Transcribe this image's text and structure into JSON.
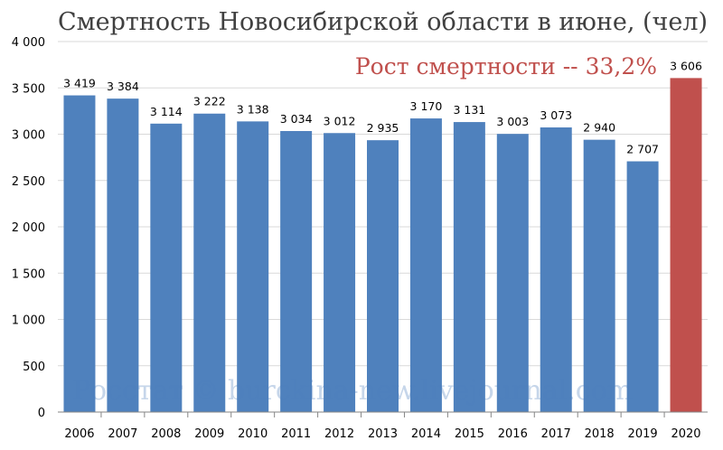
{
  "chart_data": {
    "type": "bar",
    "title": "Смертность Новосибирской области в июне, (чел)",
    "annotation": "Рост смертности -- 33,2%",
    "source": "Росстат © burckina-new.livejournal.com",
    "categories": [
      "2006",
      "2007",
      "2008",
      "2009",
      "2010",
      "2011",
      "2012",
      "2013",
      "2014",
      "2015",
      "2016",
      "2017",
      "2018",
      "2019",
      "2020"
    ],
    "values": [
      3419,
      3384,
      3114,
      3222,
      3138,
      3034,
      3012,
      2935,
      3170,
      3131,
      3003,
      3073,
      2940,
      2707,
      3606
    ],
    "value_labels": [
      "3 419",
      "3 384",
      "3 114",
      "3 222",
      "3 138",
      "3 034",
      "3 012",
      "2 935",
      "3 170",
      "3 131",
      "3 003",
      "3 073",
      "2 940",
      "2 707",
      "3 606"
    ],
    "yticks": [
      0,
      500,
      1000,
      1500,
      2000,
      2500,
      3000,
      3500,
      4000
    ],
    "ytick_labels": [
      "0",
      "500",
      "1 000",
      "1 500",
      "2 000",
      "2 500",
      "3 000",
      "3 500",
      "4 000"
    ],
    "ylim": [
      0,
      4000
    ],
    "grid": true,
    "legend": "none",
    "colors": {
      "default": "#4f81bd",
      "highlight": "#c0504d"
    },
    "highlight_index": 14
  }
}
